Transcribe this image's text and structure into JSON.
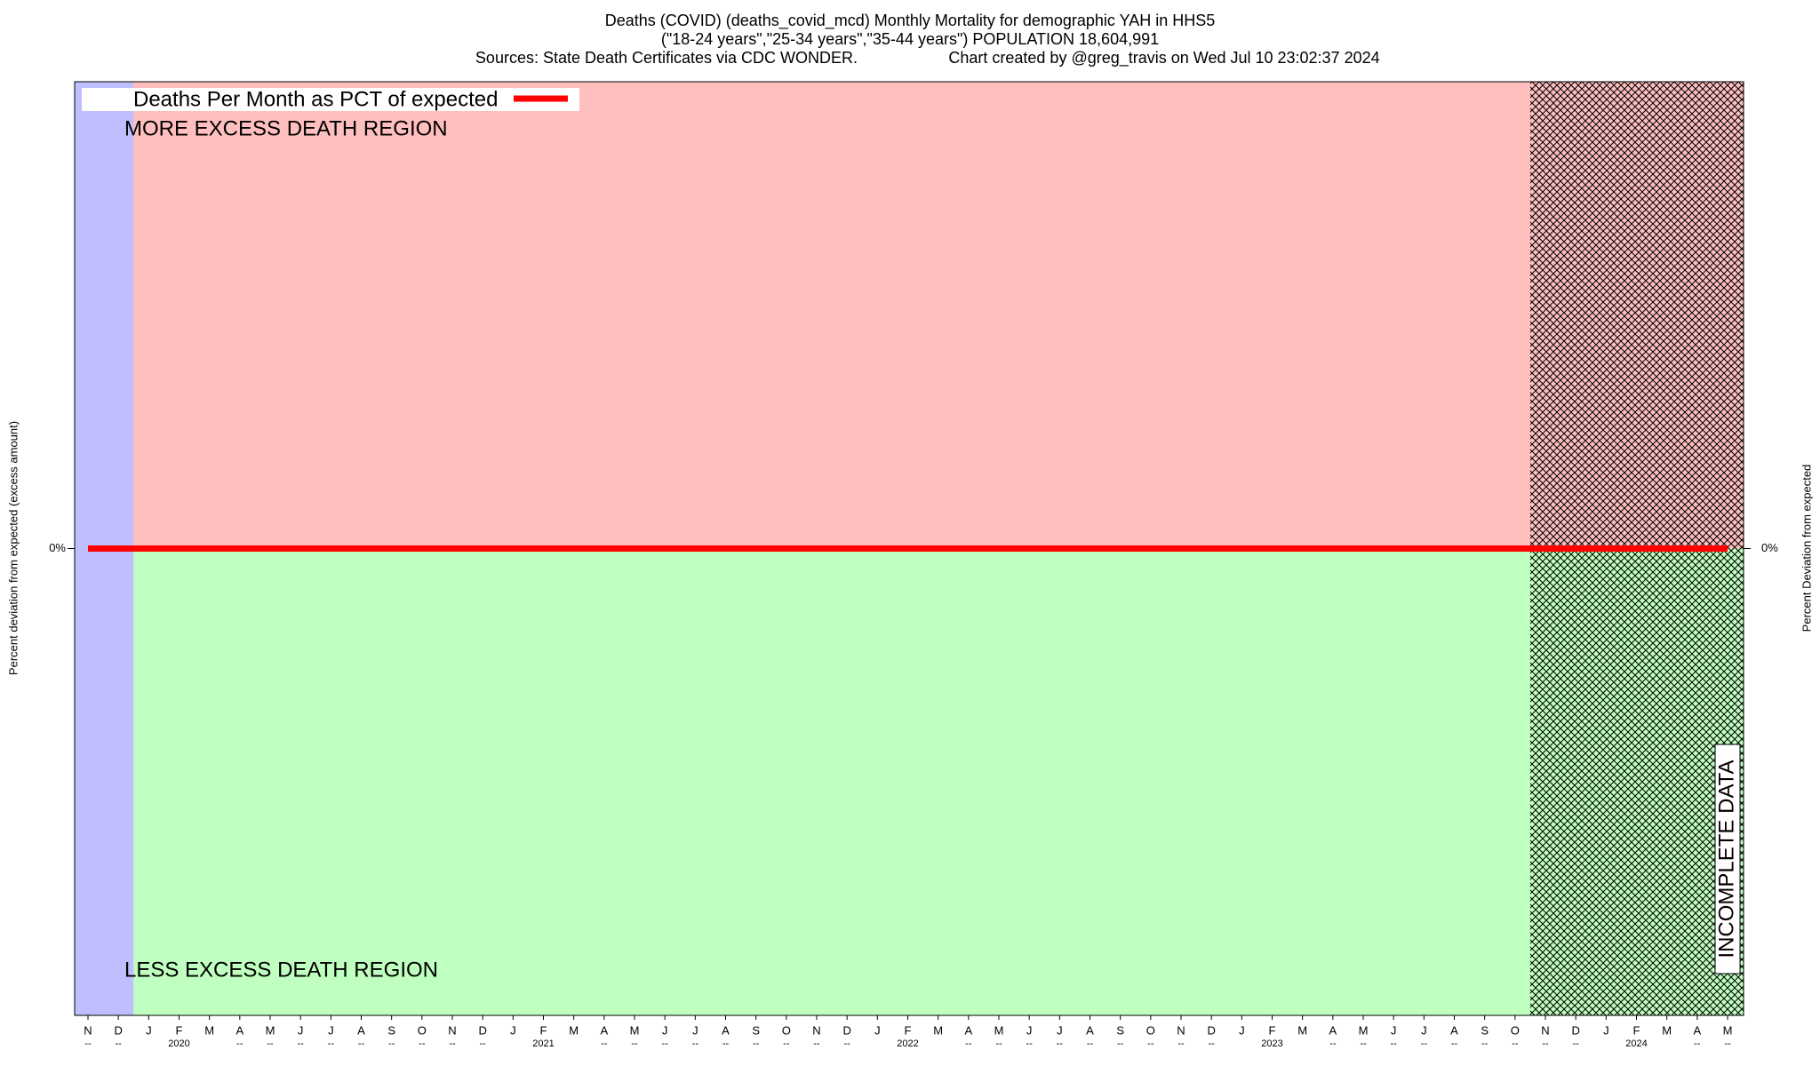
{
  "chart_data": {
    "type": "line",
    "title": [
      "Deaths (COVID) (deaths_covid_mcd) Monthly Mortality for demographic YAH in HHS5",
      "(\"18-24 years\",\"25-34 years\",\"35-44 years\") POPULATION 18,604,991"
    ],
    "sources": "Sources: State Death Certificates via CDC WONDER.",
    "credit": "Chart created by @greg_travis on Wed Jul 10 23:02:37 2024",
    "ylabel": "Percent deviation from expected (excess amount)",
    "y2label": "Percent Deviation from expected",
    "annotations": [
      "MORE EXCESS DEATH REGION",
      "LESS EXCESS DEATH REGION",
      "INCOMPLETE DATA"
    ],
    "categories": [
      "N",
      "D",
      "J",
      "F",
      "M",
      "A",
      "M",
      "J",
      "J",
      "A",
      "S",
      "O",
      "N",
      "D",
      "J",
      "F",
      "M",
      "A",
      "M",
      "J",
      "J",
      "A",
      "S",
      "O",
      "N",
      "D",
      "J",
      "F",
      "M",
      "A",
      "M",
      "J",
      "J",
      "A",
      "S",
      "O",
      "N",
      "D",
      "J",
      "F",
      "M",
      "A",
      "M",
      "J",
      "J",
      "A",
      "S",
      "O",
      "N",
      "D",
      "J",
      "F",
      "M",
      "A",
      "M"
    ],
    "category_sublabels": [
      "--",
      "--",
      null,
      "2020",
      null,
      "--",
      "--",
      "--",
      "--",
      "--",
      "--",
      "--",
      "--",
      "--",
      null,
      "2021",
      null,
      "--",
      "--",
      "--",
      "--",
      "--",
      "--",
      "--",
      "--",
      "--",
      null,
      "2022",
      null,
      "--",
      "--",
      "--",
      "--",
      "--",
      "--",
      "--",
      "--",
      "--",
      null,
      "2023",
      null,
      "--",
      "--",
      "--",
      "--",
      "--",
      "--",
      "--",
      "--",
      "--",
      null,
      "2024",
      null,
      "--",
      "--"
    ],
    "series": [
      {
        "name": "Deaths Per Month as PCT of expected",
        "color": "#ff0000",
        "values": [
          0,
          0,
          0,
          0,
          0,
          0,
          0,
          0,
          0,
          0,
          0,
          0,
          0,
          0,
          0,
          0,
          0,
          0,
          0,
          0,
          0,
          0,
          0,
          0,
          0,
          0,
          0,
          0,
          0,
          0,
          0,
          0,
          0,
          0,
          0,
          0,
          0,
          0,
          0,
          0,
          0,
          0,
          0,
          0,
          0,
          0,
          0,
          0,
          0,
          0,
          0,
          0,
          0,
          0,
          0
        ]
      }
    ],
    "ylim": [
      -100,
      100
    ],
    "yticks": [
      {
        "value": 0,
        "label": "0%"
      }
    ],
    "y2lim": [
      -100,
      100
    ],
    "y2ticks": [
      {
        "value": 0,
        "label": "0%"
      }
    ],
    "legend": "upper left"
  }
}
